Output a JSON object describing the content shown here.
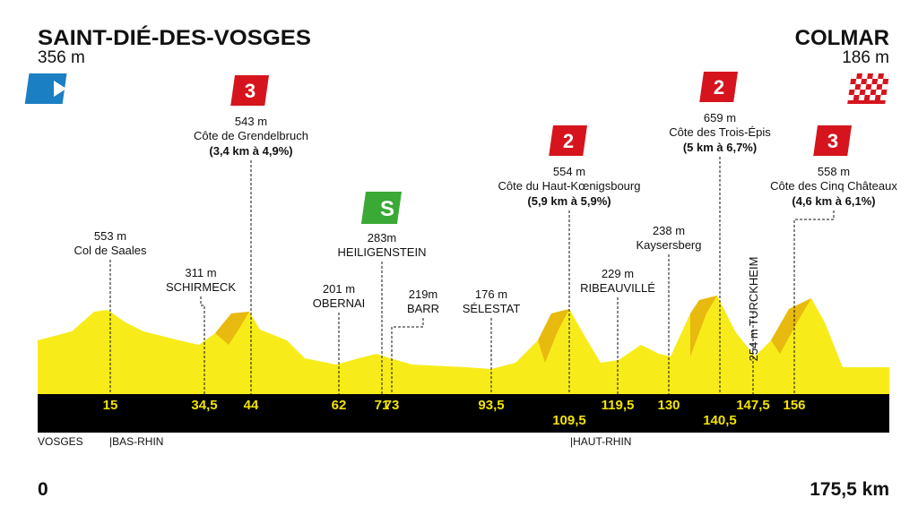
{
  "start": {
    "name": "SAINT-DIÉ-DES-VOSGES",
    "altitude": "356 m",
    "km": "0"
  },
  "finish": {
    "name": "COLMAR",
    "altitude": "186 m",
    "km": "175,5 km"
  },
  "regions": [
    "VOSGES",
    "|BAS-RHIN",
    "|HAUT-RHIN"
  ],
  "waypoints": [
    {
      "km": "15",
      "altitude": "553 m",
      "name": "Col de Saales"
    },
    {
      "km": "34,5",
      "altitude": "311 m",
      "name": "SCHIRMECK"
    },
    {
      "km": "44",
      "altitude": "543 m",
      "name": "Côte de Grendelbruch",
      "detail": "(3,4 km à 4,9%)",
      "category": "3"
    },
    {
      "km": "62",
      "altitude": "201 m",
      "name": "OBERNAI"
    },
    {
      "km": "71",
      "altitude": "283m",
      "name": "HEILIGENSTEIN",
      "sprint": "S"
    },
    {
      "km": "73",
      "altitude": "219m",
      "name": "BARR"
    },
    {
      "km": "93,5",
      "altitude": "176 m",
      "name": "SÉLESTAT"
    },
    {
      "km": "109,5",
      "altitude": "554 m",
      "name": "Côte du Haut-Kœnigsbourg",
      "detail": "(5,9 km à 5,9%)",
      "category": "2"
    },
    {
      "km": "119,5",
      "altitude": "229 m",
      "name": "RIBEAUVILLÉ"
    },
    {
      "km": "130",
      "altitude": "238 m",
      "name": "Kaysersberg"
    },
    {
      "km": "140,5",
      "altitude": "659 m",
      "name": "Côte des Trois-Épis",
      "detail": "(5 km à 6,7%)",
      "category": "2"
    },
    {
      "km": "147,5",
      "altitude": "254 m",
      "name": "TURCKHEIM"
    },
    {
      "km": "156",
      "altitude": "558 m",
      "name": "Côte des Cinq Châteaux",
      "detail": "(4,6 km à 6,1%)",
      "category": "3"
    }
  ]
}
